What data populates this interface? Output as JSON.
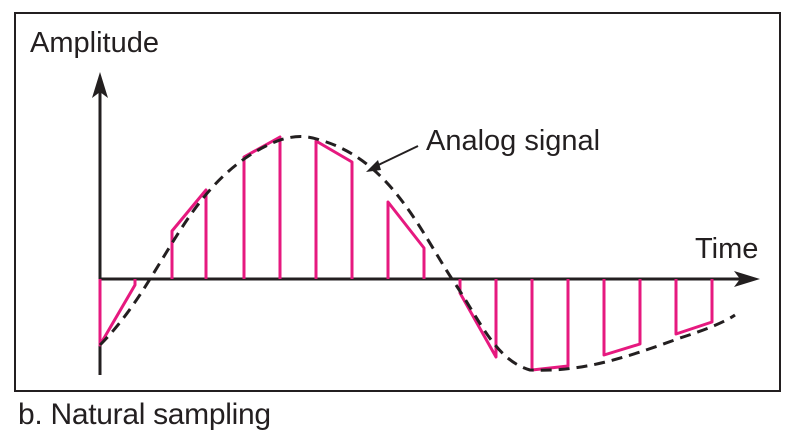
{
  "diagram": {
    "y_axis_label": "Amplitude",
    "x_axis_label": "Time",
    "signal_label": "Analog signal",
    "caption": "b. Natural sampling"
  },
  "colors": {
    "ink": "#231f20",
    "sample": "#e6197f"
  }
}
